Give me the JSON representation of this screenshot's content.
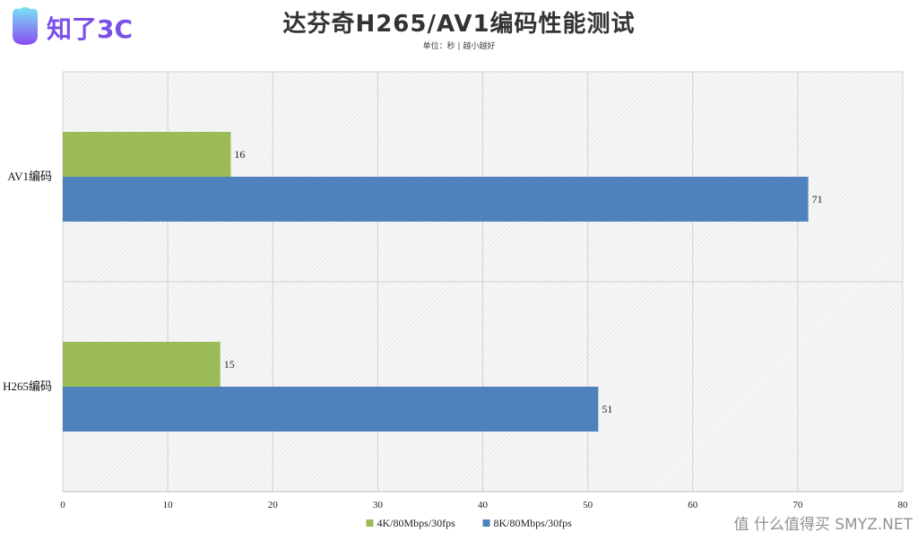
{
  "header": {
    "logo_text": "知了3C",
    "title": "达芬奇H265/AV1编码性能测试",
    "subtitle": "单位：秒 | 越小越好"
  },
  "watermark": "值 什么值得买 SMYZ.NET",
  "colors": {
    "series_4k": "#9bbb59",
    "series_8k": "#4f81bd",
    "grid": "#d0d0d0",
    "plot_bg": "#f2f2f2"
  },
  "chart_data": {
    "type": "bar",
    "orientation": "horizontal",
    "title": "达芬奇H265/AV1编码性能测试",
    "subtitle": "单位：秒 | 越小越好",
    "categories": [
      "AV1编码",
      "H265编码"
    ],
    "series": [
      {
        "name": "4K/80Mbps/30fps",
        "values": [
          16,
          15
        ]
      },
      {
        "name": "8K/80Mbps/30fps",
        "values": [
          71,
          51
        ]
      }
    ],
    "xlim": [
      0,
      80
    ],
    "x_ticks": [
      0,
      10,
      20,
      30,
      40,
      50,
      60,
      70,
      80
    ],
    "grid": true,
    "legend": "bottom"
  }
}
